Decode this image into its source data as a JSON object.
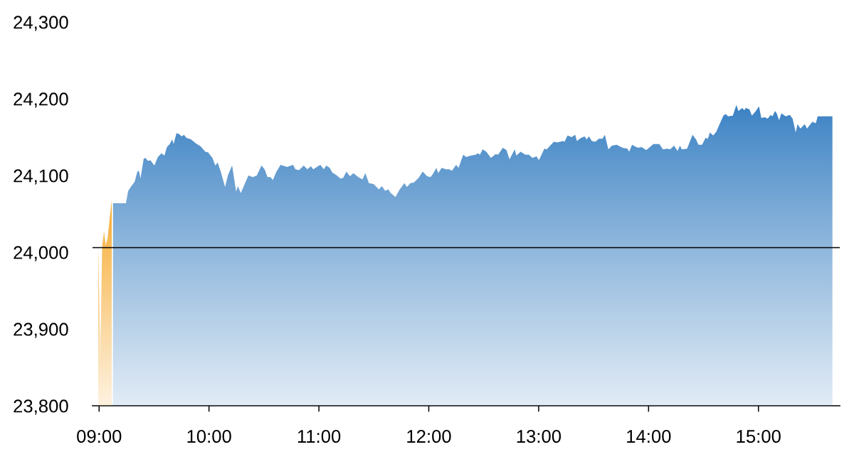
{
  "chart_data": {
    "type": "area",
    "xlim": [
      8.94,
      15.74
    ],
    "ylim": [
      23800,
      24300
    ],
    "xticks": [
      {
        "value": 9,
        "label": "09:00"
      },
      {
        "value": 10,
        "label": "10:00"
      },
      {
        "value": 11,
        "label": "11:00"
      },
      {
        "value": 12,
        "label": "12:00"
      },
      {
        "value": 13,
        "label": "13:00"
      },
      {
        "value": 14,
        "label": "14:00"
      },
      {
        "value": 15,
        "label": "15:00"
      }
    ],
    "yticks": [
      {
        "value": 23800,
        "label": "23,800"
      },
      {
        "value": 23900,
        "label": "23,900"
      },
      {
        "value": 24000,
        "label": "24,000"
      },
      {
        "value": 24100,
        "label": "24,100"
      },
      {
        "value": 24200,
        "label": "24,200"
      },
      {
        "value": 24300,
        "label": "24,300"
      }
    ],
    "grid": false,
    "ref_lines": [
      {
        "axis": "y",
        "value": 24006,
        "color": "#000000",
        "line_style": "solid"
      }
    ],
    "series": [
      {
        "color": "#f6aa2c",
        "x": [
          8.992,
          9.011,
          9.028,
          9.045,
          9.06,
          9.078,
          9.115
        ],
        "values": [
          24007,
          23864,
          24008,
          24027,
          24009,
          24019,
          24068
        ]
      },
      {
        "color": "#3a82c4",
        "x": [
          9.125,
          9.244,
          9.265,
          9.293,
          9.324,
          9.348,
          9.362,
          9.377,
          9.406,
          9.421,
          9.445,
          9.466,
          9.503,
          9.535,
          9.568,
          9.594,
          9.617,
          9.643,
          9.665,
          9.678,
          9.704,
          9.729,
          9.751,
          9.772,
          9.794,
          9.837,
          9.88,
          9.924,
          9.966,
          9.992,
          10.031,
          10.057,
          10.079,
          10.107,
          10.146,
          10.172,
          10.21,
          10.247,
          10.262,
          10.29,
          10.322,
          10.359,
          10.398,
          10.435,
          10.478,
          10.506,
          10.532,
          10.56,
          10.581,
          10.614,
          10.652,
          10.711,
          10.765,
          10.786,
          10.819,
          10.862,
          10.895,
          10.927,
          10.948,
          11.013,
          11.045,
          11.067,
          11.099,
          11.121,
          11.164,
          11.196,
          11.222,
          11.25,
          11.283,
          11.315,
          11.358,
          11.397,
          11.423,
          11.455,
          11.498,
          11.546,
          11.574,
          11.602,
          11.632,
          11.654,
          11.697,
          11.736,
          11.779,
          11.801,
          11.833,
          11.865,
          11.908,
          11.945,
          11.984,
          12.016,
          12.038,
          12.07,
          12.085,
          12.118,
          12.157,
          12.189,
          12.21,
          12.249,
          12.271,
          12.314,
          12.34,
          12.383,
          12.426,
          12.448,
          12.465,
          12.491,
          12.523,
          12.566,
          12.61,
          12.631,
          12.674,
          12.707,
          12.735,
          12.782,
          12.797,
          12.836,
          12.879,
          12.911,
          12.944,
          12.981,
          13.002,
          13.052,
          13.073,
          13.138,
          13.17,
          13.22,
          13.235,
          13.263,
          13.3,
          13.332,
          13.348,
          13.386,
          13.419,
          13.436,
          13.458,
          13.484,
          13.516,
          13.548,
          13.581,
          13.602,
          13.634,
          13.667,
          13.71,
          13.764,
          13.807,
          13.824,
          13.85,
          13.876,
          13.904,
          13.937,
          13.979,
          14.012,
          14.044,
          14.098,
          14.131,
          14.17,
          14.196,
          14.232,
          14.264,
          14.286,
          14.303,
          14.351,
          14.4,
          14.432,
          14.454,
          14.487,
          14.519,
          14.54,
          14.558,
          14.588,
          14.616,
          14.681,
          14.702,
          14.724,
          14.767,
          14.799,
          14.817,
          14.853,
          14.871,
          14.885,
          14.918,
          14.94,
          14.972,
          15.005,
          15.026,
          15.058,
          15.084,
          15.112,
          15.128,
          15.151,
          15.166,
          15.188,
          15.209,
          15.248,
          15.285,
          15.311,
          15.339,
          15.356,
          15.382,
          15.421,
          15.442,
          15.49,
          15.522,
          15.539,
          15.673
        ],
        "values": [
          24064,
          24064,
          24080,
          24086,
          24092,
          24105,
          24106,
          24096,
          24122,
          24123,
          24119,
          24120,
          24113,
          24124,
          24129,
          24126,
          24137,
          24141,
          24147,
          24141,
          24155,
          24154,
          24151,
          24153,
          24149,
          24147,
          24142,
          24138,
          24131,
          24130,
          24123,
          24113,
          24117,
          24105,
          24085,
          24100,
          24113,
          24079,
          24086,
          24077,
          24088,
          24100,
          24098,
          24100,
          24113,
          24108,
          24098,
          24098,
          24094,
          24105,
          24114,
          24111,
          24114,
          24108,
          24107,
          24113,
          24108,
          24112,
          24108,
          24114,
          24108,
          24113,
          24110,
          24104,
          24100,
          24096,
          24097,
          24105,
          24099,
          24103,
          24098,
          24095,
          24103,
          24090,
          24089,
          24082,
          24086,
          24080,
          24082,
          24077,
          24072,
          24082,
          24090,
          24085,
          24090,
          24091,
          24097,
          24105,
          24099,
          24098,
          24102,
          24110,
          24103,
          24110,
          24108,
          24108,
          24106,
          24114,
          24110,
          24127,
          24124,
          24126,
          24127,
          24129,
          24127,
          24134,
          24131,
          24123,
          24128,
          24127,
          24136,
          24133,
          24121,
          24134,
          24126,
          24131,
          24127,
          24127,
          24123,
          24125,
          24120,
          24135,
          24134,
          24144,
          24143,
          24145,
          24144,
          24152,
          24150,
          24153,
          24145,
          24149,
          24151,
          24147,
          24151,
          24145,
          24144,
          24148,
          24148,
          24153,
          24134,
          24139,
          24140,
          24136,
          24135,
          24131,
          24140,
          24138,
          24136,
          24137,
          24133,
          24137,
          24141,
          24141,
          24134,
          24135,
          24134,
          24139,
          24132,
          24139,
          24134,
          24135,
          24153,
          24147,
          24140,
          24140,
          24149,
          24148,
          24156,
          24152,
          24157,
          24178,
          24180,
          24177,
          24178,
          24192,
          24184,
          24188,
          24185,
          24188,
          24186,
          24178,
          24183,
          24190,
          24175,
          24176,
          24174,
          24179,
          24177,
          24184,
          24181,
          24172,
          24181,
          24177,
          24179,
          24174,
          24156,
          24167,
          24161,
          24167,
          24161,
          24170,
          24168,
          24177,
          24177
        ]
      }
    ]
  }
}
